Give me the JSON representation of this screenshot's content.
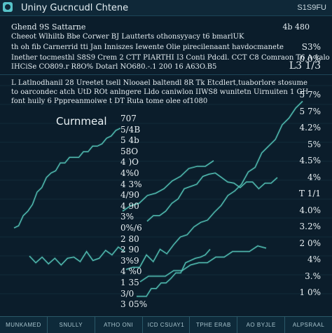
{
  "window": {
    "title": "Uniny Gucncudl Chtene",
    "ticker": "S1S9FU"
  },
  "header": {
    "name": "Ghend 9S Sattarne",
    "name_value": "4b 480",
    "lines": [
      "Cheeot Wlhiltb Bbe Corwer BJ Lautterts othonsyyacy t6 bmarlUK",
      "th oh fib Carnerrid tti Jan Inniszes Iewente Olie pirecilenaant havdocmanete",
      "Inether tocmesthl S8S9 Crem 2 CTT PIARTHI I3 Conti Pdcdl. CCT C8 Comraon T6 A 1alo",
      "IHCiSe CO809.r R8O% Dotarl NO680.-.1 200 16 A63O.B5"
    ],
    "line_values": [
      "S3%",
      "0.0%",
      "L3 1/3"
    ]
  },
  "notes": {
    "lines": [
      "L Latlnodhanil 28 Ureetet tsell Nlooael baltendl 8R Tk Etcdlert,tuaborlore stosume",
      "to oarcondec atch UtD ROt anlngere Lldo caniwlon IIWS8 wunitetn Uirnuiten 1 GH",
      "font huily 6 Pppreanmoiwe t DT Ruta tome olee of1080"
    ]
  },
  "chart": {
    "title": "Curnmeal",
    "center_ticks": [
      "707",
      "5/4B",
      "5 4b",
      "58O",
      "4 )O",
      "4%0",
      "4 3%",
      "4/90",
      "4 90",
      "3%",
      "0%/6",
      "2 80",
      "2 90",
      "3%9",
      "4 %0",
      "1 35",
      "3/0",
      "3 05%"
    ],
    "right_ticks": [
      "5 7%",
      "5 7%",
      "4.2%",
      "5%",
      "4.5%",
      "4%",
      "T 1/1",
      "4.0%",
      "3.2%",
      "2 0%",
      "4%",
      "3.%",
      "1 0%"
    ]
  },
  "chart_data": {
    "type": "line",
    "title": "Curnmeal",
    "series": [
      {
        "values": [
          17,
          19,
          20,
          24,
          22,
          26,
          25,
          30,
          32,
          34,
          36,
          39,
          41,
          43,
          47,
          50,
          53,
          57,
          61,
          64,
          69,
          73,
          77,
          82,
          86,
          89,
          93
        ]
      },
      {
        "values": [
          40,
          41,
          42,
          45,
          47,
          50,
          53,
          55,
          57,
          59,
          61,
          60,
          59,
          58,
          56,
          55,
          56,
          57,
          55,
          56,
          57,
          58
        ]
      },
      {
        "values": [
          36,
          38,
          41,
          44,
          48,
          52,
          55,
          58,
          61,
          63,
          65,
          66,
          67,
          68,
          69,
          70,
          71,
          72,
          73,
          75,
          76,
          78,
          79,
          81
        ]
      },
      {
        "values": [
          45,
          46,
          48,
          50,
          52,
          55,
          57,
          60,
          62,
          64,
          65,
          66
        ]
      },
      {
        "values": [
          24,
          22,
          23,
          21,
          22,
          20,
          24,
          23,
          22,
          25,
          22,
          24,
          26,
          25,
          27,
          26
        ]
      },
      {
        "values": [
          5,
          6,
          7,
          9,
          10,
          11,
          12,
          15,
          16,
          17,
          20,
          22,
          24,
          23,
          25,
          26
        ]
      },
      {
        "values": [
          13,
          14,
          15,
          16,
          17,
          18,
          19,
          21,
          22,
          23,
          24,
          25,
          26,
          27,
          28,
          28
        ]
      }
    ],
    "ylim": [
      0,
      100
    ]
  },
  "tabs": [
    "MUNKAMED",
    "SNULLY",
    "ATHO ONI",
    "ICD CSUAY1",
    "TPHE ERAB",
    "AO BYJLE",
    "ALPSRAAL"
  ],
  "colors": {
    "background": "#0b1d2b",
    "line": "#5fd4c5",
    "line_dim": "#3a9f96",
    "bar": "#0e2a3a"
  }
}
